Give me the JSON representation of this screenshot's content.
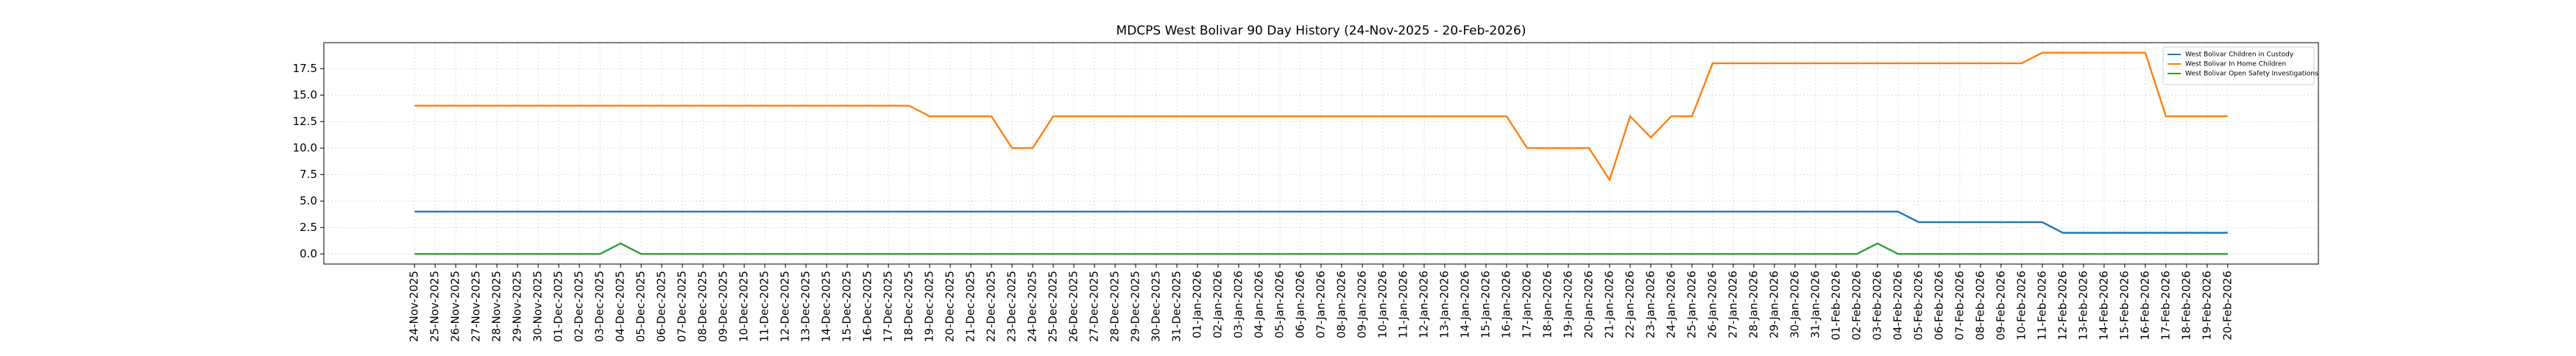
{
  "chart_data": {
    "type": "line",
    "title": "MDCPS West Bolivar 90 Day History (24-Nov-2025 - 20-Feb-2026)",
    "categories": [
      "24-Nov-2025",
      "25-Nov-2025",
      "26-Nov-2025",
      "27-Nov-2025",
      "28-Nov-2025",
      "29-Nov-2025",
      "30-Nov-2025",
      "01-Dec-2025",
      "02-Dec-2025",
      "03-Dec-2025",
      "04-Dec-2025",
      "05-Dec-2025",
      "06-Dec-2025",
      "07-Dec-2025",
      "08-Dec-2025",
      "09-Dec-2025",
      "10-Dec-2025",
      "11-Dec-2025",
      "12-Dec-2025",
      "13-Dec-2025",
      "14-Dec-2025",
      "15-Dec-2025",
      "16-Dec-2025",
      "17-Dec-2025",
      "18-Dec-2025",
      "19-Dec-2025",
      "20-Dec-2025",
      "21-Dec-2025",
      "22-Dec-2025",
      "23-Dec-2025",
      "24-Dec-2025",
      "25-Dec-2025",
      "26-Dec-2025",
      "27-Dec-2025",
      "28-Dec-2025",
      "29-Dec-2025",
      "30-Dec-2025",
      "31-Dec-2025",
      "01-Jan-2026",
      "02-Jan-2026",
      "03-Jan-2026",
      "04-Jan-2026",
      "05-Jan-2026",
      "06-Jan-2026",
      "07-Jan-2026",
      "08-Jan-2026",
      "09-Jan-2026",
      "10-Jan-2026",
      "11-Jan-2026",
      "12-Jan-2026",
      "13-Jan-2026",
      "14-Jan-2026",
      "15-Jan-2026",
      "16-Jan-2026",
      "17-Jan-2026",
      "18-Jan-2026",
      "19-Jan-2026",
      "20-Jan-2026",
      "21-Jan-2026",
      "22-Jan-2026",
      "23-Jan-2026",
      "24-Jan-2026",
      "25-Jan-2026",
      "26-Jan-2026",
      "27-Jan-2026",
      "28-Jan-2026",
      "29-Jan-2026",
      "30-Jan-2026",
      "31-Jan-2026",
      "01-Feb-2026",
      "02-Feb-2026",
      "03-Feb-2026",
      "04-Feb-2026",
      "05-Feb-2026",
      "06-Feb-2026",
      "07-Feb-2026",
      "08-Feb-2026",
      "09-Feb-2026",
      "10-Feb-2026",
      "11-Feb-2026",
      "12-Feb-2026",
      "13-Feb-2026",
      "14-Feb-2026",
      "15-Feb-2026",
      "16-Feb-2026",
      "17-Feb-2026",
      "18-Feb-2026",
      "19-Feb-2026",
      "20-Feb-2026"
    ],
    "series": [
      {
        "name": "West Bolivar Children in Custody",
        "color": "#1f77b4",
        "values": [
          4,
          4,
          4,
          4,
          4,
          4,
          4,
          4,
          4,
          4,
          4,
          4,
          4,
          4,
          4,
          4,
          4,
          4,
          4,
          4,
          4,
          4,
          4,
          4,
          4,
          4,
          4,
          4,
          4,
          4,
          4,
          4,
          4,
          4,
          4,
          4,
          4,
          4,
          4,
          4,
          4,
          4,
          4,
          4,
          4,
          4,
          4,
          4,
          4,
          4,
          4,
          4,
          4,
          4,
          4,
          4,
          4,
          4,
          4,
          4,
          4,
          4,
          4,
          4,
          4,
          4,
          4,
          4,
          4,
          4,
          4,
          4,
          4,
          3,
          3,
          3,
          3,
          3,
          3,
          3,
          2,
          2,
          2,
          2,
          2,
          2,
          2,
          2,
          2
        ]
      },
      {
        "name": "West Bolivar In Home Children",
        "color": "#ff7f0e",
        "values": [
          14,
          14,
          14,
          14,
          14,
          14,
          14,
          14,
          14,
          14,
          14,
          14,
          14,
          14,
          14,
          14,
          14,
          14,
          14,
          14,
          14,
          14,
          14,
          14,
          14,
          13,
          13,
          13,
          13,
          10,
          10,
          13,
          13,
          13,
          13,
          13,
          13,
          13,
          13,
          13,
          13,
          13,
          13,
          13,
          13,
          13,
          13,
          13,
          13,
          13,
          13,
          13,
          13,
          13,
          10,
          10,
          10,
          10,
          7,
          13,
          11,
          13,
          13,
          18,
          18,
          18,
          18,
          18,
          18,
          18,
          18,
          18,
          18,
          18,
          18,
          18,
          18,
          18,
          18,
          19,
          19,
          19,
          19,
          19,
          19,
          13,
          13,
          13,
          13
        ]
      },
      {
        "name": "West Bolivar Open Safety Investigations",
        "color": "#2ca02c",
        "values": [
          0,
          0,
          0,
          0,
          0,
          0,
          0,
          0,
          0,
          0,
          1,
          0,
          0,
          0,
          0,
          0,
          0,
          0,
          0,
          0,
          0,
          0,
          0,
          0,
          0,
          0,
          0,
          0,
          0,
          0,
          0,
          0,
          0,
          0,
          0,
          0,
          0,
          0,
          0,
          0,
          0,
          0,
          0,
          0,
          0,
          0,
          0,
          0,
          0,
          0,
          0,
          0,
          0,
          0,
          0,
          0,
          0,
          0,
          0,
          0,
          0,
          0,
          0,
          0,
          0,
          0,
          0,
          0,
          0,
          0,
          0,
          1,
          0,
          0,
          0,
          0,
          0,
          0,
          0,
          0,
          0,
          0,
          0,
          0,
          0,
          0,
          0,
          0,
          0
        ]
      }
    ],
    "ylim": [
      -0.95,
      19.95
    ],
    "yticks": [
      {
        "value": 0,
        "label": "0.0"
      },
      {
        "value": 2.5,
        "label": "2.5"
      },
      {
        "value": 5,
        "label": "5.0"
      },
      {
        "value": 7.5,
        "label": "7.5"
      },
      {
        "value": 10,
        "label": "10.0"
      },
      {
        "value": 12.5,
        "label": "12.5"
      },
      {
        "value": 15,
        "label": "15.0"
      },
      {
        "value": 17.5,
        "label": "17.5"
      }
    ],
    "grid": true,
    "legend": "upper right"
  }
}
